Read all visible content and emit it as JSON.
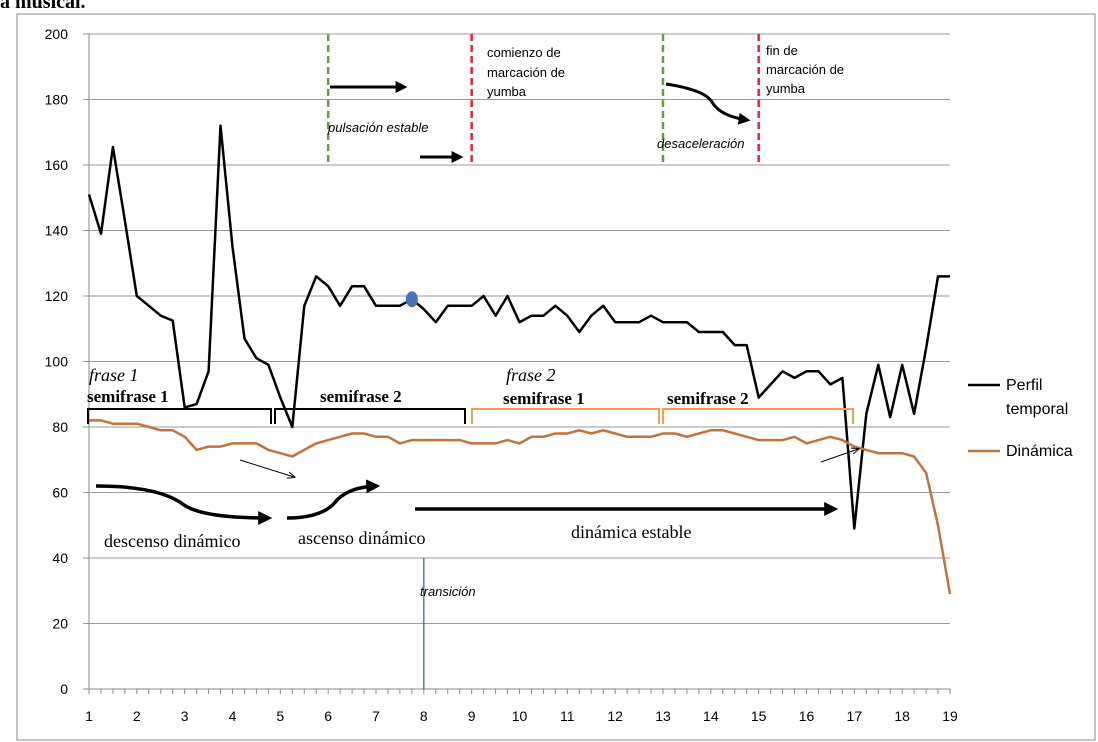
{
  "page_heading_fragment": "a musical.",
  "chart_data": {
    "type": "line",
    "ylim": [
      0,
      200
    ],
    "yticks": [
      0,
      20,
      40,
      60,
      80,
      100,
      120,
      140,
      160,
      180,
      200
    ],
    "xlim": [
      1,
      19
    ],
    "xticks": [
      1,
      2,
      3,
      4,
      5,
      6,
      7,
      8,
      9,
      10,
      11,
      12,
      13,
      14,
      15,
      16,
      17,
      18,
      19
    ],
    "grid": "horizontal",
    "legend_position": "right",
    "series": [
      {
        "name": "Perfil temporal",
        "color": "#000000",
        "points": [
          [
            1,
            151
          ],
          [
            1.25,
            139
          ],
          [
            1.5,
            165.5
          ],
          [
            1.75,
            143
          ],
          [
            2,
            120
          ],
          [
            2.25,
            117
          ],
          [
            2.5,
            114
          ],
          [
            2.75,
            112.5
          ],
          [
            3,
            86
          ],
          [
            3.25,
            87
          ],
          [
            3.5,
            97
          ],
          [
            3.75,
            172
          ],
          [
            4,
            135
          ],
          [
            4.25,
            107
          ],
          [
            4.5,
            101
          ],
          [
            4.75,
            99
          ],
          [
            5,
            89
          ],
          [
            5.25,
            80
          ],
          [
            5.5,
            117
          ],
          [
            5.75,
            126
          ],
          [
            6,
            123
          ],
          [
            6.25,
            117
          ],
          [
            6.5,
            123
          ],
          [
            6.75,
            123
          ],
          [
            7,
            117
          ],
          [
            7.25,
            117
          ],
          [
            7.5,
            117
          ],
          [
            7.75,
            119
          ],
          [
            8,
            116
          ],
          [
            8.25,
            112
          ],
          [
            8.5,
            117
          ],
          [
            8.75,
            117
          ],
          [
            9,
            117
          ],
          [
            9.25,
            120
          ],
          [
            9.5,
            114
          ],
          [
            9.75,
            120
          ],
          [
            10,
            112
          ],
          [
            10.25,
            114
          ],
          [
            10.5,
            114
          ],
          [
            10.75,
            117
          ],
          [
            11,
            114
          ],
          [
            11.25,
            109
          ],
          [
            11.5,
            114
          ],
          [
            11.75,
            117
          ],
          [
            12,
            112
          ],
          [
            12.25,
            112
          ],
          [
            12.5,
            112
          ],
          [
            12.75,
            114
          ],
          [
            13,
            112
          ],
          [
            13.25,
            112
          ],
          [
            13.5,
            112
          ],
          [
            13.75,
            109
          ],
          [
            14,
            109
          ],
          [
            14.25,
            109
          ],
          [
            14.5,
            105
          ],
          [
            14.75,
            105
          ],
          [
            15,
            89
          ],
          [
            15.25,
            93
          ],
          [
            15.5,
            97
          ],
          [
            15.75,
            95
          ],
          [
            16,
            97
          ],
          [
            16.25,
            97
          ],
          [
            16.5,
            93
          ],
          [
            16.75,
            95
          ],
          [
            17,
            49
          ],
          [
            17.25,
            84
          ],
          [
            17.5,
            99
          ],
          [
            17.75,
            83
          ],
          [
            18,
            99
          ],
          [
            18.25,
            84
          ],
          [
            18.5,
            104
          ],
          [
            18.75,
            126
          ],
          [
            19,
            126
          ]
        ]
      },
      {
        "name": "Dinámica",
        "color": "#C0733A",
        "points": [
          [
            1,
            82
          ],
          [
            1.25,
            82
          ],
          [
            1.5,
            81
          ],
          [
            1.75,
            81
          ],
          [
            2,
            81
          ],
          [
            2.25,
            80
          ],
          [
            2.5,
            79
          ],
          [
            2.75,
            79
          ],
          [
            3,
            77
          ],
          [
            3.25,
            73
          ],
          [
            3.5,
            74
          ],
          [
            3.75,
            74
          ],
          [
            4,
            75
          ],
          [
            4.25,
            75
          ],
          [
            4.5,
            75
          ],
          [
            4.75,
            73
          ],
          [
            5,
            72
          ],
          [
            5.25,
            71
          ],
          [
            5.5,
            73
          ],
          [
            5.75,
            75
          ],
          [
            6,
            76
          ],
          [
            6.25,
            77
          ],
          [
            6.5,
            78
          ],
          [
            6.75,
            78
          ],
          [
            7,
            77
          ],
          [
            7.25,
            77
          ],
          [
            7.5,
            75
          ],
          [
            7.75,
            76
          ],
          [
            8,
            76
          ],
          [
            8.25,
            76
          ],
          [
            8.5,
            76
          ],
          [
            8.75,
            76
          ],
          [
            9,
            75
          ],
          [
            9.25,
            75
          ],
          [
            9.5,
            75
          ],
          [
            9.75,
            76
          ],
          [
            10,
            75
          ],
          [
            10.25,
            77
          ],
          [
            10.5,
            77
          ],
          [
            10.75,
            78
          ],
          [
            11,
            78
          ],
          [
            11.25,
            79
          ],
          [
            11.5,
            78
          ],
          [
            11.75,
            79
          ],
          [
            12,
            78
          ],
          [
            12.25,
            77
          ],
          [
            12.5,
            77
          ],
          [
            12.75,
            77
          ],
          [
            13,
            78
          ],
          [
            13.25,
            78
          ],
          [
            13.5,
            77
          ],
          [
            13.75,
            78
          ],
          [
            14,
            79
          ],
          [
            14.25,
            79
          ],
          [
            14.5,
            78
          ],
          [
            14.75,
            77
          ],
          [
            15,
            76
          ],
          [
            15.25,
            76
          ],
          [
            15.5,
            76
          ],
          [
            15.75,
            77
          ],
          [
            16,
            75
          ],
          [
            16.25,
            76
          ],
          [
            16.5,
            77
          ],
          [
            16.75,
            76
          ],
          [
            17,
            74
          ],
          [
            17.25,
            73
          ],
          [
            17.5,
            72
          ],
          [
            17.75,
            72
          ],
          [
            18,
            72
          ],
          [
            18.25,
            71
          ],
          [
            18.5,
            66
          ],
          [
            18.75,
            50
          ],
          [
            19,
            29
          ]
        ]
      }
    ],
    "marker": {
      "x": 7.75,
      "y": 119,
      "color": "#4A72B8"
    },
    "vertical_markers": [
      {
        "x": 6.0,
        "color": "#6E9A3A",
        "y_from": 160,
        "y_to": 200
      },
      {
        "x": 9.0,
        "color": "#E8252A",
        "y_from": 160,
        "y_to": 200
      },
      {
        "x": 13.0,
        "color": "#6E9A3A",
        "y_from": 160,
        "y_to": 200
      },
      {
        "x": 15.0,
        "color": "#E8252A",
        "y_from": 160,
        "y_to": 200
      },
      {
        "x": 8.0,
        "color": "#2E5C9A",
        "y_from": 0,
        "y_to": 40
      }
    ],
    "annotations": {
      "pulsacion_estable": "pulsación estable",
      "comienzo_1": "comienzo de",
      "comienzo_2": "marcación de",
      "comienzo_3": "yumba",
      "desaceleracion": "desaceleración",
      "fin_1": "fin de",
      "fin_2": "marcación de",
      "fin_3": "yumba",
      "frase_1": "frase 1",
      "frase_2": "frase 2",
      "semifrase_1a": "semifrase 1",
      "semifrase_2a": "semifrase 2",
      "semifrase_1b": "semifrase 1",
      "semifrase_2b": "semifrase 2",
      "descenso": "descenso dinámico",
      "ascenso": "ascenso dinámico",
      "estable": "dinámica estable",
      "transicion": "transición"
    },
    "legend": [
      {
        "label_1": "Perfil",
        "label_2": "temporal",
        "color": "#000000"
      },
      {
        "label_1": "Dinámica",
        "color": "#C0733A"
      }
    ]
  }
}
